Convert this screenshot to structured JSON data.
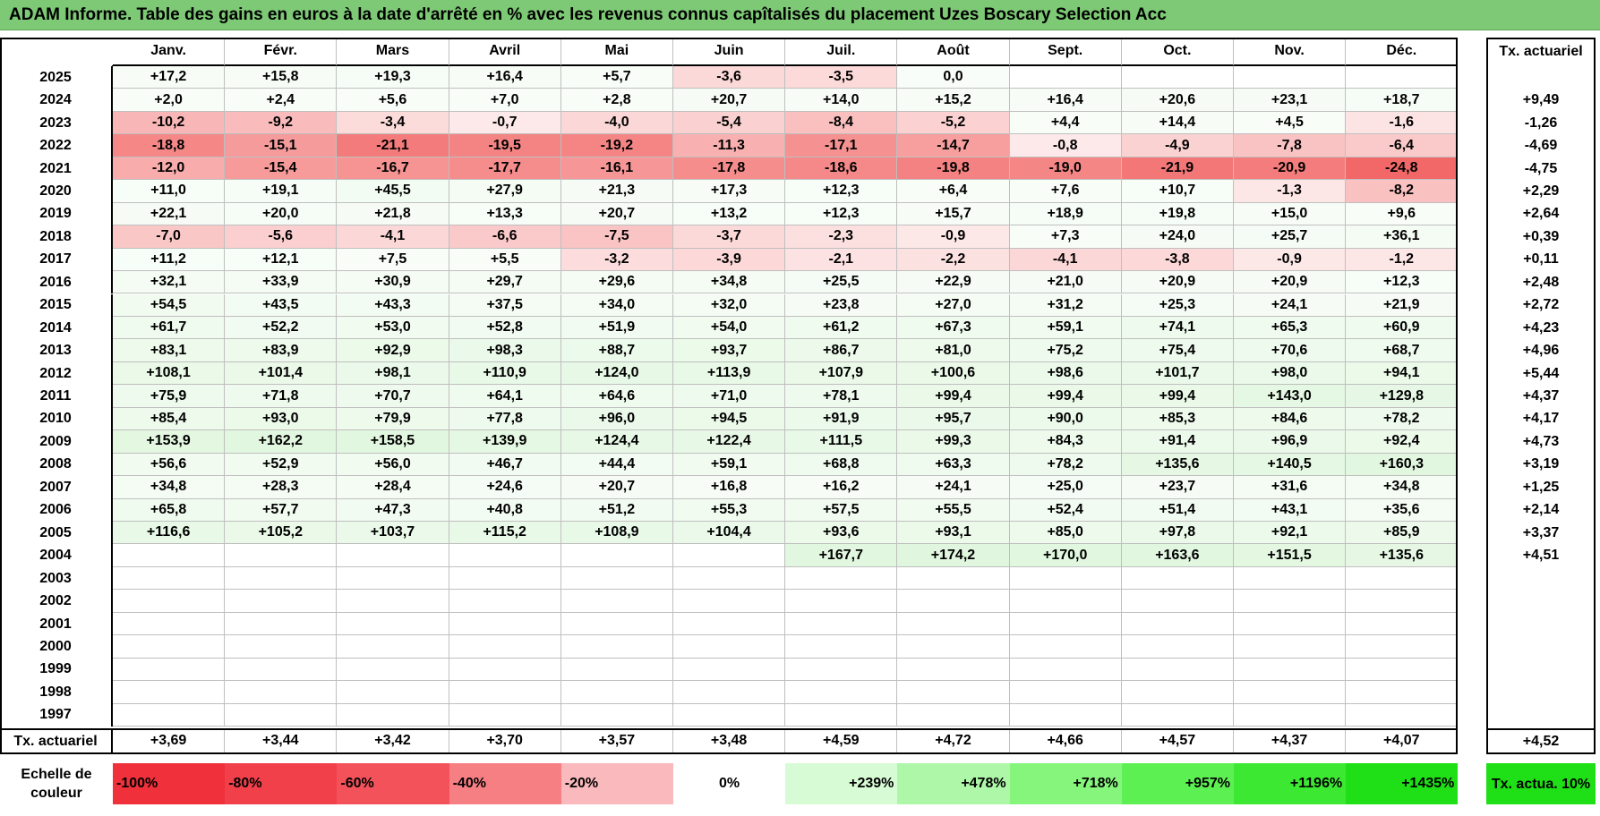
{
  "title": "ADAM Informe. Table des gains en euros à la date d'arrêté en % avec les revenus connus capîtalisés du placement Uzes Boscary Selection Acc",
  "months": [
    "Janv.",
    "Févr.",
    "Mars",
    "Avril",
    "Mai",
    "Juin",
    "Juil.",
    "Août",
    "Sept.",
    "Oct.",
    "Nov.",
    "Déc."
  ],
  "tx_header": "Tx. actuariel",
  "rows": [
    {
      "year": "2025",
      "values": [
        "+17,2",
        "+15,8",
        "+19,3",
        "+16,4",
        "+5,7",
        "-3,6",
        "-3,5",
        "0,0",
        "",
        "",
        "",
        ""
      ],
      "tx": ""
    },
    {
      "year": "2024",
      "values": [
        "+2,0",
        "+2,4",
        "+5,6",
        "+7,0",
        "+2,8",
        "+20,7",
        "+14,0",
        "+15,2",
        "+16,4",
        "+20,6",
        "+23,1",
        "+18,7"
      ],
      "tx": "+9,49"
    },
    {
      "year": "2023",
      "values": [
        "-10,2",
        "-9,2",
        "-3,4",
        "-0,7",
        "-4,0",
        "-5,4",
        "-8,4",
        "-5,2",
        "+4,4",
        "+14,4",
        "+4,5",
        "-1,6"
      ],
      "tx": "-1,26"
    },
    {
      "year": "2022",
      "values": [
        "-18,8",
        "-15,1",
        "-21,1",
        "-19,5",
        "-19,2",
        "-11,3",
        "-17,1",
        "-14,7",
        "-0,8",
        "-4,9",
        "-7,8",
        "-6,4"
      ],
      "tx": "-4,69"
    },
    {
      "year": "2021",
      "values": [
        "-12,0",
        "-15,4",
        "-16,7",
        "-17,7",
        "-16,1",
        "-17,8",
        "-18,6",
        "-19,8",
        "-19,0",
        "-21,9",
        "-20,9",
        "-24,8"
      ],
      "tx": "-4,75"
    },
    {
      "year": "2020",
      "values": [
        "+11,0",
        "+19,1",
        "+45,5",
        "+27,9",
        "+21,3",
        "+17,3",
        "+12,3",
        "+6,4",
        "+7,6",
        "+10,7",
        "-1,3",
        "-8,2"
      ],
      "tx": "+2,29"
    },
    {
      "year": "2019",
      "values": [
        "+22,1",
        "+20,0",
        "+21,8",
        "+13,3",
        "+20,7",
        "+13,2",
        "+12,3",
        "+15,7",
        "+18,9",
        "+19,8",
        "+15,0",
        "+9,6"
      ],
      "tx": "+2,64"
    },
    {
      "year": "2018",
      "values": [
        "-7,0",
        "-5,6",
        "-4,1",
        "-6,6",
        "-7,5",
        "-3,7",
        "-2,3",
        "-0,9",
        "+7,3",
        "+24,0",
        "+25,7",
        "+36,1"
      ],
      "tx": "+0,39"
    },
    {
      "year": "2017",
      "values": [
        "+11,2",
        "+12,1",
        "+7,5",
        "+5,5",
        "-3,2",
        "-3,9",
        "-2,1",
        "-2,2",
        "-4,1",
        "-3,8",
        "-0,9",
        "-1,2"
      ],
      "tx": "+0,11"
    },
    {
      "year": "2016",
      "values": [
        "+32,1",
        "+33,9",
        "+30,9",
        "+29,7",
        "+29,6",
        "+34,8",
        "+25,5",
        "+22,9",
        "+21,0",
        "+20,9",
        "+20,9",
        "+12,3"
      ],
      "tx": "+2,48"
    },
    {
      "year": "2015",
      "values": [
        "+54,5",
        "+43,5",
        "+43,3",
        "+37,5",
        "+34,0",
        "+32,0",
        "+23,8",
        "+27,0",
        "+31,2",
        "+25,3",
        "+24,1",
        "+21,9"
      ],
      "tx": "+2,72"
    },
    {
      "year": "2014",
      "values": [
        "+61,7",
        "+52,2",
        "+53,0",
        "+52,8",
        "+51,9",
        "+54,0",
        "+61,2",
        "+67,3",
        "+59,1",
        "+74,1",
        "+65,3",
        "+60,9"
      ],
      "tx": "+4,23"
    },
    {
      "year": "2013",
      "values": [
        "+83,1",
        "+83,9",
        "+92,9",
        "+98,3",
        "+88,7",
        "+93,7",
        "+86,7",
        "+81,0",
        "+75,2",
        "+75,4",
        "+70,6",
        "+68,7"
      ],
      "tx": "+4,96"
    },
    {
      "year": "2012",
      "values": [
        "+108,1",
        "+101,4",
        "+98,1",
        "+110,9",
        "+124,0",
        "+113,9",
        "+107,9",
        "+100,6",
        "+98,6",
        "+101,7",
        "+98,0",
        "+94,1"
      ],
      "tx": "+5,44"
    },
    {
      "year": "2011",
      "values": [
        "+75,9",
        "+71,8",
        "+70,7",
        "+64,1",
        "+64,6",
        "+71,0",
        "+78,1",
        "+99,4",
        "+99,4",
        "+99,4",
        "+143,0",
        "+129,8"
      ],
      "tx": "+4,37"
    },
    {
      "year": "2010",
      "values": [
        "+85,4",
        "+93,0",
        "+79,9",
        "+77,8",
        "+96,0",
        "+94,5",
        "+91,9",
        "+95,7",
        "+90,0",
        "+85,3",
        "+84,6",
        "+78,2"
      ],
      "tx": "+4,17"
    },
    {
      "year": "2009",
      "values": [
        "+153,9",
        "+162,2",
        "+158,5",
        "+139,9",
        "+124,4",
        "+122,4",
        "+111,5",
        "+99,3",
        "+84,3",
        "+91,4",
        "+96,9",
        "+92,4"
      ],
      "tx": "+4,73"
    },
    {
      "year": "2008",
      "values": [
        "+56,6",
        "+52,9",
        "+56,0",
        "+46,7",
        "+44,4",
        "+59,1",
        "+68,8",
        "+63,3",
        "+78,2",
        "+135,6",
        "+140,5",
        "+160,3"
      ],
      "tx": "+3,19"
    },
    {
      "year": "2007",
      "values": [
        "+34,8",
        "+28,3",
        "+28,4",
        "+24,6",
        "+20,7",
        "+16,8",
        "+16,2",
        "+24,1",
        "+25,0",
        "+23,7",
        "+31,6",
        "+34,8"
      ],
      "tx": "+1,25"
    },
    {
      "year": "2006",
      "values": [
        "+65,8",
        "+57,7",
        "+47,3",
        "+40,8",
        "+51,2",
        "+55,3",
        "+57,5",
        "+55,5",
        "+52,4",
        "+51,4",
        "+43,1",
        "+35,6"
      ],
      "tx": "+2,14"
    },
    {
      "year": "2005",
      "values": [
        "+116,6",
        "+105,2",
        "+103,7",
        "+115,2",
        "+108,9",
        "+104,4",
        "+93,6",
        "+93,1",
        "+85,0",
        "+97,8",
        "+92,1",
        "+85,9"
      ],
      "tx": "+3,37"
    },
    {
      "year": "2004",
      "values": [
        "",
        "",
        "",
        "",
        "",
        "",
        "+167,7",
        "+174,2",
        "+170,0",
        "+163,6",
        "+151,5",
        "+135,6"
      ],
      "tx": "+4,51"
    },
    {
      "year": "2003",
      "values": [
        "",
        "",
        "",
        "",
        "",
        "",
        "",
        "",
        "",
        "",
        "",
        ""
      ],
      "tx": ""
    },
    {
      "year": "2002",
      "values": [
        "",
        "",
        "",
        "",
        "",
        "",
        "",
        "",
        "",
        "",
        "",
        ""
      ],
      "tx": ""
    },
    {
      "year": "2001",
      "values": [
        "",
        "",
        "",
        "",
        "",
        "",
        "",
        "",
        "",
        "",
        "",
        ""
      ],
      "tx": ""
    },
    {
      "year": "2000",
      "values": [
        "",
        "",
        "",
        "",
        "",
        "",
        "",
        "",
        "",
        "",
        "",
        ""
      ],
      "tx": ""
    },
    {
      "year": "1999",
      "values": [
        "",
        "",
        "",
        "",
        "",
        "",
        "",
        "",
        "",
        "",
        "",
        ""
      ],
      "tx": ""
    },
    {
      "year": "1998",
      "values": [
        "",
        "",
        "",
        "",
        "",
        "",
        "",
        "",
        "",
        "",
        "",
        ""
      ],
      "tx": ""
    },
    {
      "year": "1997",
      "values": [
        "",
        "",
        "",
        "",
        "",
        "",
        "",
        "",
        "",
        "",
        "",
        ""
      ],
      "tx": ""
    }
  ],
  "footer": {
    "label": "Tx. actuariel",
    "values": [
      "+3,69",
      "+3,44",
      "+3,42",
      "+3,70",
      "+3,57",
      "+3,48",
      "+4,59",
      "+4,72",
      "+4,66",
      "+4,57",
      "+4,37",
      "+4,07"
    ],
    "tx": "+4,52"
  },
  "legend": {
    "label": "Echelle de couleur",
    "items": [
      {
        "text": "-100%",
        "color": "#f0303a",
        "align": "left"
      },
      {
        "text": "-80%",
        "color": "#f2404a",
        "align": "left"
      },
      {
        "text": "-60%",
        "color": "#f4525a",
        "align": "left"
      },
      {
        "text": "-40%",
        "color": "#f67f84",
        "align": "left"
      },
      {
        "text": "-20%",
        "color": "#fab9bc",
        "align": "left"
      },
      {
        "text": "0%",
        "color": "#ffffff",
        "align": "center"
      },
      {
        "text": "+239%",
        "color": "#d7fbd4",
        "align": "right"
      },
      {
        "text": "+478%",
        "color": "#aef7a8",
        "align": "right"
      },
      {
        "text": "+718%",
        "color": "#86f57c",
        "align": "right"
      },
      {
        "text": "+957%",
        "color": "#5df053",
        "align": "right"
      },
      {
        "text": "+1196%",
        "color": "#3de833",
        "align": "right"
      },
      {
        "text": "+1435%",
        "color": "#1fe016",
        "align": "right"
      }
    ],
    "tx_text": "Tx. actua. 10%",
    "tx_color": "#1fe016"
  },
  "colors": {
    "title_bg": "#7dc975",
    "negative": "#f26868",
    "positive": "#9be394"
  }
}
